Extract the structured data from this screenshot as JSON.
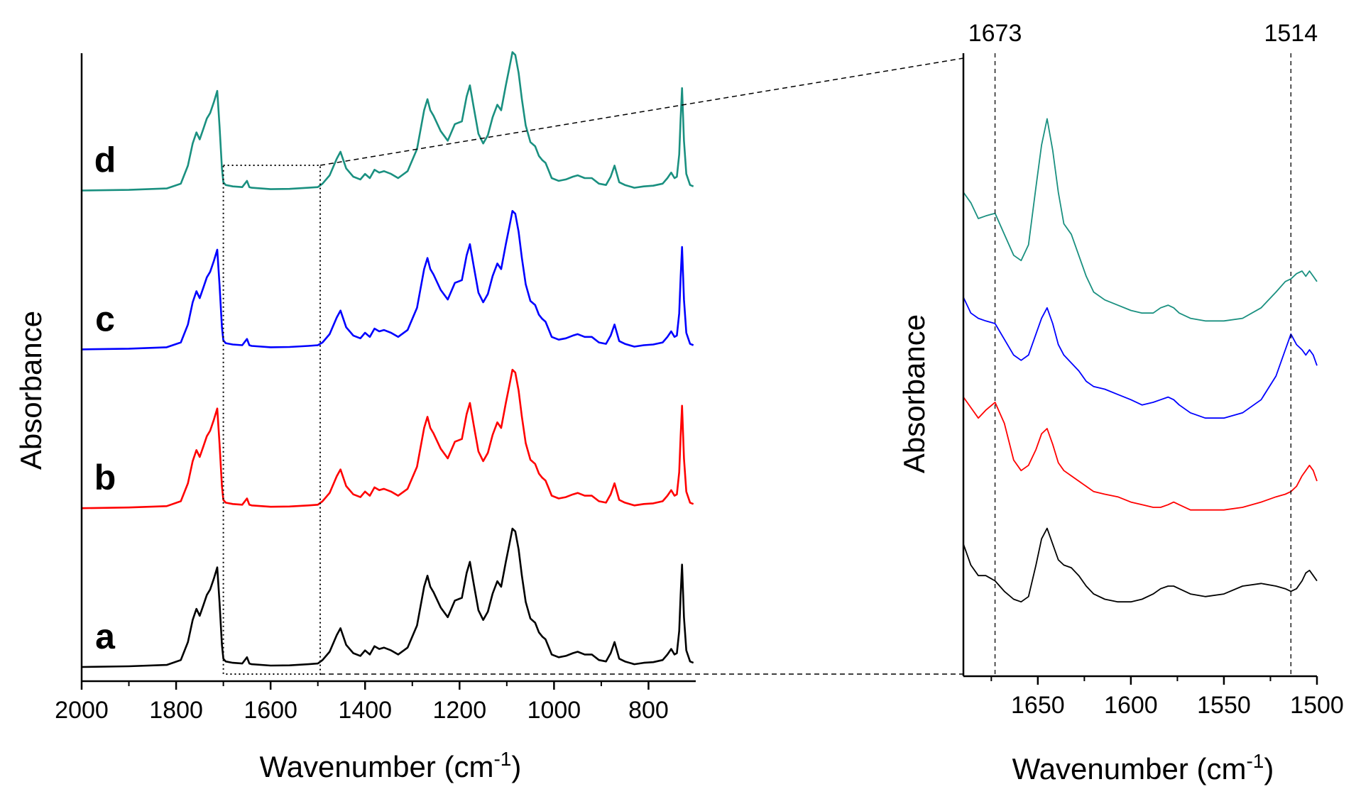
{
  "chart_data": [
    {
      "type": "line",
      "panel": "overview",
      "title": "",
      "xlabel": "Wavenumber (cm",
      "xlabel_sup": "-1",
      "xlabel_tail": ")",
      "ylabel": "Absorbance",
      "xlim": [
        2000,
        700
      ],
      "ylim": [
        0,
        10
      ],
      "x_reversed": true,
      "xticks": [
        2000,
        1800,
        1600,
        1400,
        1200,
        1000,
        800
      ],
      "xtick_labels": [
        "2000",
        "1800",
        "1600",
        "1400",
        "1200",
        "1000",
        "800"
      ],
      "zoom_region": {
        "x_from": 1700,
        "x_to": 1495
      },
      "x": [
        2000,
        1900,
        1820,
        1790,
        1775,
        1765,
        1757,
        1750,
        1742,
        1735,
        1728,
        1720,
        1713,
        1708,
        1703,
        1700,
        1695,
        1680,
        1660,
        1650,
        1645,
        1640,
        1600,
        1560,
        1520,
        1500,
        1490,
        1475,
        1460,
        1452,
        1440,
        1425,
        1410,
        1400,
        1390,
        1380,
        1370,
        1360,
        1345,
        1330,
        1310,
        1290,
        1275,
        1268,
        1262,
        1255,
        1240,
        1225,
        1210,
        1195,
        1185,
        1178,
        1170,
        1160,
        1150,
        1140,
        1130,
        1120,
        1112,
        1102,
        1095,
        1088,
        1082,
        1075,
        1068,
        1060,
        1050,
        1040,
        1032,
        1025,
        1018,
        1012,
        1005,
        990,
        975,
        960,
        950,
        935,
        920,
        905,
        890,
        880,
        872,
        862,
        850,
        830,
        810,
        790,
        770,
        760,
        752,
        745,
        740,
        735,
        732,
        729,
        725,
        720,
        712,
        705
      ],
      "base_shape": [
        0.0,
        0.05,
        0.15,
        0.5,
        1.8,
        3.4,
        4.2,
        3.7,
        4.5,
        5.2,
        5.6,
        6.4,
        7.2,
        4.6,
        1.6,
        0.6,
        0.4,
        0.3,
        0.25,
        0.7,
        0.25,
        0.2,
        0.1,
        0.12,
        0.2,
        0.25,
        0.5,
        1.1,
        2.3,
        2.8,
        1.6,
        1.0,
        0.8,
        1.2,
        0.9,
        1.5,
        1.3,
        1.4,
        1.2,
        0.9,
        1.4,
        3.0,
        5.8,
        6.6,
        5.8,
        5.4,
        4.3,
        3.6,
        4.8,
        5.0,
        6.8,
        7.6,
        6.0,
        4.1,
        3.4,
        4.0,
        5.3,
        6.2,
        5.8,
        7.6,
        8.8,
        10.0,
        9.8,
        8.5,
        6.6,
        4.7,
        3.5,
        3.2,
        2.5,
        2.2,
        2.0,
        1.5,
        0.9,
        0.7,
        0.8,
        1.0,
        1.1,
        0.9,
        0.9,
        0.5,
        0.4,
        1.0,
        1.8,
        0.6,
        0.4,
        0.2,
        0.3,
        0.35,
        0.5,
        0.9,
        1.3,
        0.9,
        1.0,
        2.6,
        5.2,
        7.4,
        3.6,
        1.2,
        0.4,
        0.3
      ],
      "series": [
        {
          "name": "a",
          "color": "#000000",
          "offset": 0,
          "scale": 1.0,
          "bump": 0
        },
        {
          "name": "b",
          "color": "#ff0000",
          "offset": 2.7,
          "scale": 1.0,
          "bump": 0
        },
        {
          "name": "c",
          "color": "#0000ff",
          "offset": 5.4,
          "scale": 1.0,
          "bump": 0.25
        },
        {
          "name": "d",
          "color": "#1a9080",
          "offset": 8.1,
          "scale": 1.0,
          "bump": 0
        }
      ]
    },
    {
      "type": "line",
      "panel": "zoom",
      "title": "",
      "xlabel": "Wavenumber (cm",
      "xlabel_sup": "-1",
      "xlabel_tail": ")",
      "ylabel": "Absorbance",
      "xlim": [
        1690,
        1500
      ],
      "ylim": [
        0,
        10
      ],
      "x_reversed": true,
      "xticks": [
        1650,
        1600,
        1550,
        1500
      ],
      "xtick_labels": [
        "1650",
        "1600",
        "1550",
        "1500"
      ],
      "reference_lines": [
        {
          "x": 1673,
          "label": "1673"
        },
        {
          "x": 1514,
          "label": "1514"
        }
      ],
      "x": [
        1690,
        1686,
        1682,
        1678,
        1673,
        1668,
        1663,
        1659,
        1655,
        1651,
        1648,
        1645,
        1642,
        1639,
        1636,
        1632,
        1628,
        1624,
        1620,
        1614,
        1607,
        1600,
        1594,
        1588,
        1584,
        1580,
        1577,
        1574,
        1568,
        1560,
        1550,
        1540,
        1530,
        1522,
        1517,
        1514,
        1511,
        1508,
        1506,
        1504,
        1502,
        1500
      ],
      "series": [
        {
          "name": "d",
          "color": "#1a9080",
          "y": [
            8.5,
            8.3,
            8.0,
            8.05,
            8.1,
            7.7,
            7.3,
            7.2,
            7.5,
            8.6,
            9.4,
            9.9,
            9.3,
            8.5,
            7.9,
            7.7,
            7.3,
            6.9,
            6.6,
            6.45,
            6.35,
            6.25,
            6.2,
            6.2,
            6.3,
            6.35,
            6.3,
            6.2,
            6.1,
            6.05,
            6.05,
            6.1,
            6.3,
            6.6,
            6.8,
            6.85,
            6.95,
            7.0,
            6.9,
            7.0,
            6.9,
            6.8
          ]
        },
        {
          "name": "c",
          "color": "#0000ff",
          "y": [
            6.5,
            6.2,
            6.1,
            6.05,
            6.0,
            5.7,
            5.4,
            5.3,
            5.4,
            5.8,
            6.1,
            6.3,
            6.0,
            5.6,
            5.4,
            5.25,
            5.1,
            4.9,
            4.8,
            4.75,
            4.65,
            4.55,
            4.45,
            4.5,
            4.55,
            4.6,
            4.55,
            4.45,
            4.3,
            4.2,
            4.2,
            4.3,
            4.55,
            5.0,
            5.5,
            5.8,
            5.6,
            5.5,
            5.4,
            5.5,
            5.4,
            5.2
          ]
        },
        {
          "name": "b",
          "color": "#ff0000",
          "y": [
            4.6,
            4.4,
            4.2,
            4.35,
            4.5,
            4.1,
            3.4,
            3.2,
            3.3,
            3.6,
            3.9,
            4.0,
            3.7,
            3.35,
            3.2,
            3.1,
            3.0,
            2.9,
            2.8,
            2.75,
            2.7,
            2.6,
            2.55,
            2.5,
            2.5,
            2.55,
            2.6,
            2.55,
            2.45,
            2.45,
            2.45,
            2.5,
            2.6,
            2.7,
            2.75,
            2.8,
            2.9,
            3.1,
            3.2,
            3.3,
            3.2,
            3.0
          ]
        },
        {
          "name": "a",
          "color": "#000000",
          "y": [
            1.8,
            1.4,
            1.2,
            1.2,
            1.1,
            0.9,
            0.75,
            0.7,
            0.8,
            1.4,
            1.9,
            2.1,
            1.8,
            1.5,
            1.4,
            1.35,
            1.2,
            1.0,
            0.85,
            0.75,
            0.7,
            0.7,
            0.75,
            0.85,
            0.95,
            1.0,
            1.0,
            0.95,
            0.85,
            0.8,
            0.85,
            1.0,
            1.05,
            1.0,
            0.95,
            0.9,
            0.95,
            1.1,
            1.25,
            1.3,
            1.2,
            1.1
          ]
        }
      ]
    }
  ]
}
